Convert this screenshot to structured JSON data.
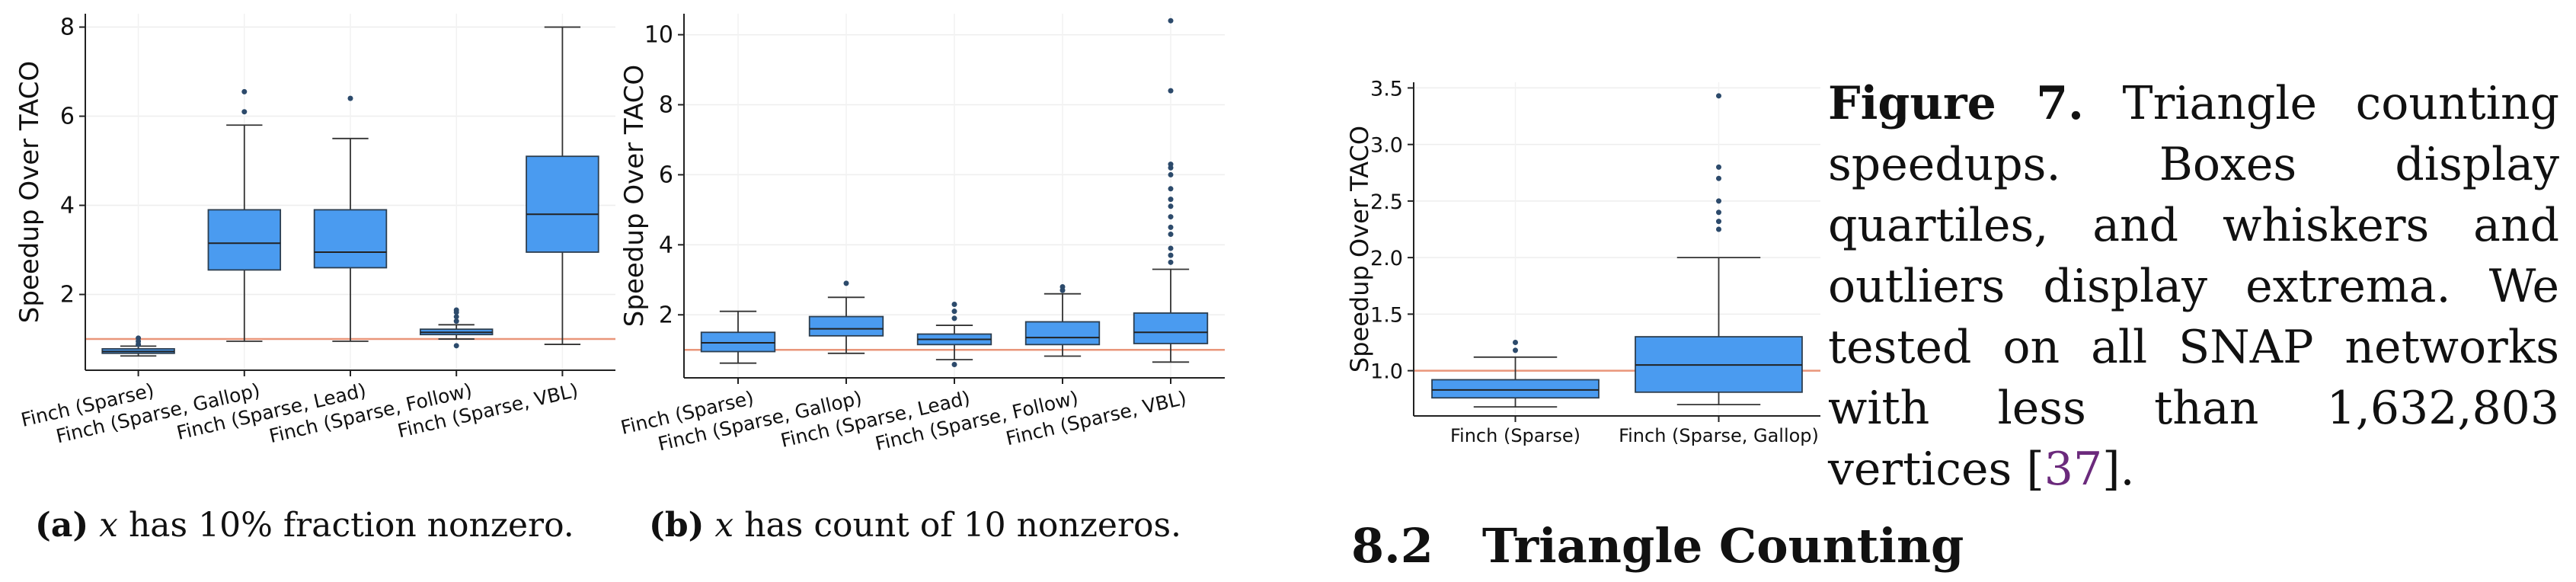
{
  "chart_data": [
    {
      "type": "box",
      "ylabel": "Speedup Over TACO",
      "ylim": [
        0.3,
        8.3
      ],
      "yticks": [
        2,
        4,
        6,
        8
      ],
      "reference_line": 1.0,
      "categories": [
        "Finch (Sparse)",
        "Finch (Sparse, Gallop)",
        "Finch (Sparse, Lead)",
        "Finch (Sparse, Follow)",
        "Finch (Sparse, VBL)"
      ],
      "boxes": [
        {
          "whisker_low": 0.62,
          "q1": 0.68,
          "median": 0.72,
          "q3": 0.78,
          "whisker_high": 0.84,
          "outliers": [
            0.88,
            0.95,
            1.02
          ]
        },
        {
          "whisker_low": 0.95,
          "q1": 2.55,
          "median": 3.15,
          "q3": 3.9,
          "whisker_high": 5.8,
          "outliers": [
            6.1,
            6.55
          ]
        },
        {
          "whisker_low": 0.95,
          "q1": 2.6,
          "median": 2.95,
          "q3": 3.9,
          "whisker_high": 5.5,
          "outliers": [
            6.4
          ]
        },
        {
          "whisker_low": 1.0,
          "q1": 1.1,
          "median": 1.15,
          "q3": 1.22,
          "whisker_high": 1.32,
          "outliers": [
            0.85,
            1.4,
            1.5,
            1.6,
            1.65
          ]
        },
        {
          "whisker_low": 0.88,
          "q1": 2.95,
          "median": 3.8,
          "q3": 5.1,
          "whisker_high": 8.0,
          "outliers": []
        }
      ],
      "caption": {
        "label": "(a)",
        "var": "x",
        "text": " has 10% fraction nonzero."
      }
    },
    {
      "type": "box",
      "ylabel": "Speedup Over TACO",
      "ylim": [
        0.2,
        10.6
      ],
      "yticks": [
        2,
        4,
        6,
        8,
        10
      ],
      "reference_line": 1.0,
      "categories": [
        "Finch (Sparse)",
        "Finch (Sparse, Gallop)",
        "Finch (Sparse, Lead)",
        "Finch (Sparse, Follow)",
        "Finch (Sparse, VBL)"
      ],
      "boxes": [
        {
          "whisker_low": 0.62,
          "q1": 0.95,
          "median": 1.2,
          "q3": 1.5,
          "whisker_high": 2.1,
          "outliers": []
        },
        {
          "whisker_low": 0.9,
          "q1": 1.4,
          "median": 1.6,
          "q3": 1.95,
          "whisker_high": 2.5,
          "outliers": [
            2.9
          ]
        },
        {
          "whisker_low": 0.72,
          "q1": 1.15,
          "median": 1.3,
          "q3": 1.45,
          "whisker_high": 1.7,
          "outliers": [
            0.58,
            1.9,
            2.1,
            2.3
          ]
        },
        {
          "whisker_low": 0.82,
          "q1": 1.15,
          "median": 1.35,
          "q3": 1.8,
          "whisker_high": 2.6,
          "outliers": [
            2.7,
            2.8
          ]
        },
        {
          "whisker_low": 0.65,
          "q1": 1.18,
          "median": 1.5,
          "q3": 2.05,
          "whisker_high": 3.3,
          "outliers": [
            3.5,
            3.7,
            3.9,
            4.3,
            4.5,
            4.8,
            5.1,
            5.3,
            5.6,
            6.0,
            6.2,
            6.3,
            8.4,
            10.4
          ]
        }
      ],
      "caption": {
        "label": "(b)",
        "var": "x",
        "text": " has count of 10 nonzeros."
      }
    },
    {
      "type": "box",
      "ylabel": "Speedup Over TACO",
      "ylim": [
        0.6,
        3.55
      ],
      "yticks": [
        1.0,
        1.5,
        2.0,
        2.5,
        3.0,
        3.5
      ],
      "reference_line": 1.0,
      "categories": [
        "Finch (Sparse)",
        "Finch (Sparse, Gallop)"
      ],
      "boxes": [
        {
          "whisker_low": 0.68,
          "q1": 0.76,
          "median": 0.83,
          "q3": 0.92,
          "whisker_high": 1.12,
          "outliers": [
            1.18,
            1.25
          ]
        },
        {
          "whisker_low": 0.7,
          "q1": 0.81,
          "median": 1.05,
          "q3": 1.3,
          "whisker_high": 2.0,
          "outliers": [
            2.25,
            2.32,
            2.4,
            2.5,
            2.7,
            2.8,
            3.43
          ]
        }
      ]
    }
  ],
  "figure_caption": {
    "label": "Figure 7.",
    "text": " Triangle counting speedups. Boxes display quartiles, and whiskers and outliers display extrema. We tested on all SNAP networks with less than 1,632,803 vertices [",
    "ref": "37",
    "tail": "]."
  },
  "section": {
    "number": "8.2",
    "title": "Triangle Counting"
  },
  "colors": {
    "box_fill": "#4a9bf0",
    "box_edge": "#2c3e50",
    "reference_line": "#e9967a",
    "outlier": "#2c4a6b"
  }
}
